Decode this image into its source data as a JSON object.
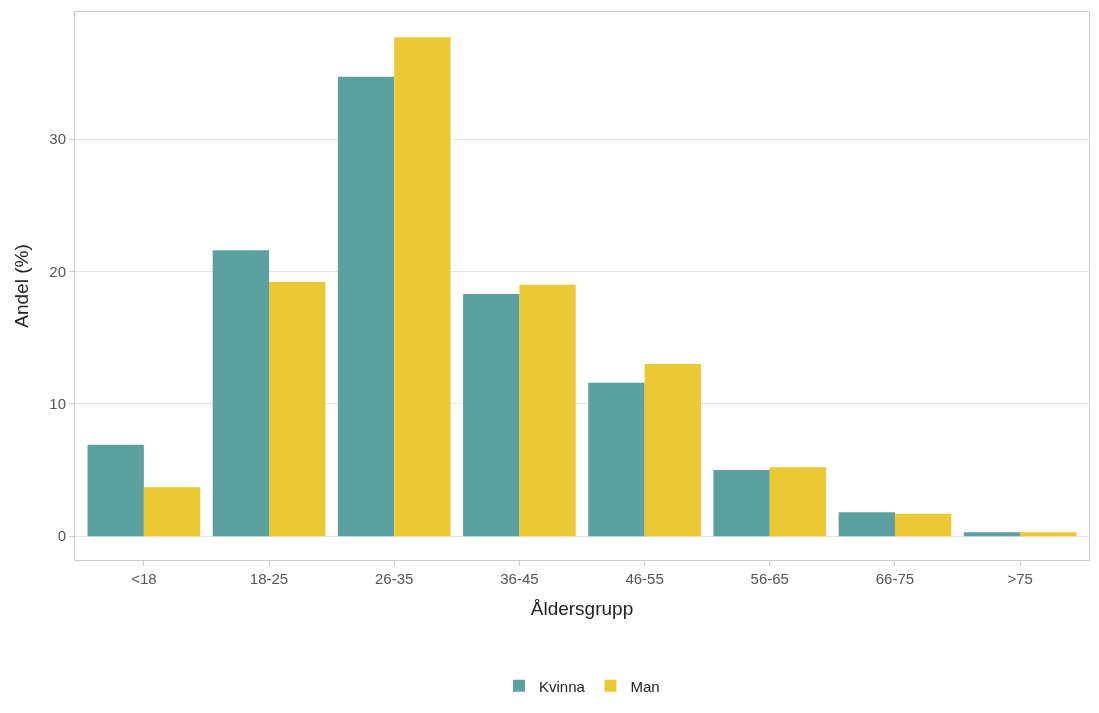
{
  "chart_data": {
    "type": "bar",
    "xlabel": "Åldersgrupp",
    "ylabel": "Andel (%)",
    "categories": [
      "<18",
      "18-25",
      "26-35",
      "36-45",
      "46-55",
      "56-65",
      "66-75",
      ">75"
    ],
    "series": [
      {
        "name": "Kvinna",
        "color": "#5ba19f",
        "values": [
          6.9,
          21.6,
          34.7,
          18.3,
          11.6,
          5.0,
          1.8,
          0.3
        ]
      },
      {
        "name": "Man",
        "color": "#ebc934",
        "values": [
          3.7,
          19.2,
          37.7,
          19.0,
          13.0,
          5.2,
          1.7,
          0.3
        ]
      }
    ],
    "ylim": [
      -1.8,
      39.6
    ],
    "yticks": [
      0,
      10,
      20,
      30
    ],
    "grid": "y",
    "legend": "bottom"
  }
}
